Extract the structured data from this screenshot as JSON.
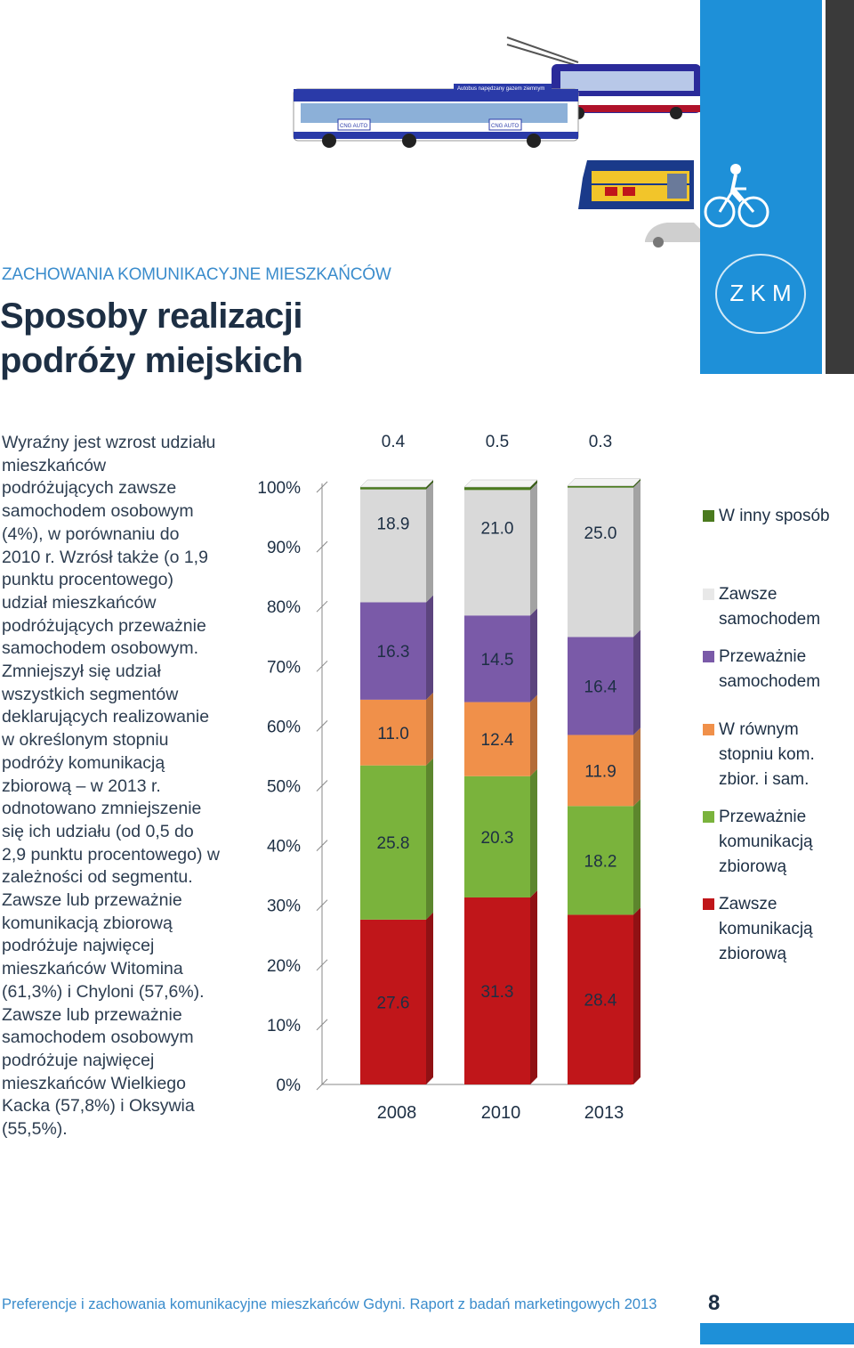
{
  "header": {
    "kicker": "ZACHOWANIA KOMUNIKACYJNE MIESZKAŃCÓW",
    "title_line1": "Sposoby realizacji",
    "title_line2": "podróży miejskich",
    "logo_text": "Z K M",
    "brand_color": "#1e90d8",
    "illustration_icons": [
      "bus-icon",
      "trolleybus-icon",
      "train-icon",
      "car-icon",
      "cyclist-icon"
    ],
    "bus_banner_text": "Autobus napędzany gazem ziemnym",
    "bus_logo_text": "CNG AUTO"
  },
  "body": {
    "paragraph": "Wyraźny jest wzrost udziału mieszkańców podróżujących zawsze samochodem osobowym (4%), w porównaniu do 2010 r. Wzrósł także (o 1,9 punktu procentowego) udział mieszkańców podróżujących przeważnie samochodem osobowym. Zmniejszył się udział wszystkich segmentów deklarujących realizowanie w określonym stopniu podróży komunikacją zbiorową – w 2013 r. odnotowano zmniejszenie się ich udziału (od 0,5 do 2,9 punktu procentowego) w zależności od segmentu. Zawsze lub przeważnie komunikacją zbiorową podróżuje najwięcej mieszkańców Witomina (61,3%) i Chyloni (57,6%). Zawsze lub przeważnie samochodem osobowym podróżuje najwięcej mieszkańców Wielkiego Kacka (57,8%) i Oksywia (55,5%)."
  },
  "chart_data": {
    "type": "bar",
    "stacked": true,
    "percent_stacked": true,
    "categories": [
      "2008",
      "2010",
      "2013"
    ],
    "ylim": [
      0,
      100
    ],
    "yticks": [
      "0%",
      "10%",
      "20%",
      "30%",
      "40%",
      "50%",
      "60%",
      "70%",
      "80%",
      "90%",
      "100%"
    ],
    "series": [
      {
        "name": "Zawsze komunikacją zbiorową",
        "color": "#c0161a",
        "values": [
          27.6,
          31.3,
          28.4
        ]
      },
      {
        "name": "Przeważnie komunikacją zbiorową",
        "color": "#7ab33c",
        "values": [
          25.8,
          20.3,
          18.2
        ]
      },
      {
        "name": "W równym stopniu kom. zbior. i sam.",
        "color": "#f0904a",
        "values": [
          11.0,
          12.4,
          11.9
        ]
      },
      {
        "name": "Przeważnie samochodem",
        "color": "#7a5aa8",
        "values": [
          16.3,
          14.5,
          16.4
        ]
      },
      {
        "name": "Zawsze samochodem",
        "color": "#d9d9d9",
        "values": [
          18.9,
          21.0,
          25.0
        ]
      },
      {
        "name": "W inny sposób",
        "color": "#4a7a1e",
        "values": [
          0.4,
          0.5,
          0.3
        ]
      }
    ],
    "value_labels": [
      [
        "27.6",
        "25.8",
        "11.0",
        "16.3",
        "18.9",
        "0.4"
      ],
      [
        "31.3",
        "20.3",
        "12.4",
        "14.5",
        "21.0",
        "0.5"
      ],
      [
        "28.4",
        "18.2",
        "11.9",
        "16.4",
        "25.0",
        "0.3"
      ]
    ],
    "legend_position": "right",
    "grid": false
  },
  "legend": [
    {
      "label": "W inny sposób",
      "color": "#4a7a1e"
    },
    {
      "label": "Zawsze samochodem",
      "color": "#d9d9d9"
    },
    {
      "label": "Przeważnie samochodem",
      "color": "#7a5aa8"
    },
    {
      "label": "W równym stopniu kom. zbior. i sam.",
      "color": "#f0904a"
    },
    {
      "label": "Przeważnie komunikacją zbiorową",
      "color": "#7ab33c"
    },
    {
      "label": "Zawsze komunikacją zbiorową",
      "color": "#c0161a"
    }
  ],
  "footer": {
    "text": "Preferencje i zachowania komunikacyjne mieszkańców Gdyni. Raport z badań marketingowych 2013",
    "page_number": "8"
  }
}
